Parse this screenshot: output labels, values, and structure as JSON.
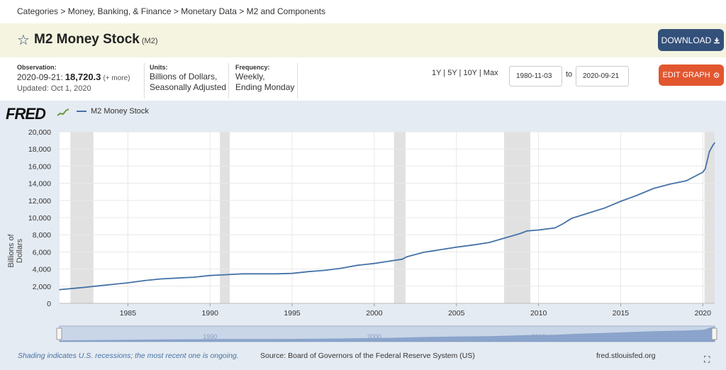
{
  "breadcrumb": "Categories > Money, Banking, & Finance > Monetary Data > M2 and Components",
  "header": {
    "title": "M2 Money Stock",
    "code": "(M2)",
    "download_label": "DOWNLOAD"
  },
  "meta": {
    "observation_label": "Observation:",
    "observation_date": "2020-09-21:",
    "observation_value": "18,720.3",
    "observation_more": "(+ more)",
    "updated": "Updated: Oct 1, 2020",
    "units_label": "Units:",
    "units_line1": "Billions of Dollars,",
    "units_line2": "Seasonally Adjusted",
    "frequency_label": "Frequency:",
    "frequency_line1": "Weekly,",
    "frequency_line2": "Ending Monday"
  },
  "controls": {
    "ranges": "1Y | 5Y | 10Y | Max",
    "start_date": "1980-11-03",
    "to_label": "to",
    "end_date": "2020-09-21",
    "edit_label": "EDIT GRAPH"
  },
  "icons": {
    "star": "star-icon",
    "download": "download-icon",
    "gear": "gear-icon",
    "fullscreen": "fullscreen-icon"
  },
  "colors": {
    "series": "#4572a7",
    "recession": "#e1e1e1",
    "download_btn": "#33507a",
    "edit_btn": "#e2562f"
  },
  "footer": {
    "recession_note": "Shading indicates U.S. recessions; the most recent one is ongoing.",
    "source": "Source: Board of Governors of the Federal Reserve System (US)",
    "site": "fred.stlouisfed.org"
  },
  "logo_text": "FRED",
  "chart_data": {
    "type": "line",
    "title": "",
    "ylabel": "Billions of Dollars",
    "xlabel": "",
    "xlim": [
      1980.84,
      2020.72
    ],
    "ylim": [
      0,
      20000
    ],
    "grid": true,
    "legend_position": "top-left",
    "xticks": [
      1985,
      1990,
      1995,
      2000,
      2005,
      2010,
      2015,
      2020
    ],
    "yticks": [
      0,
      2000,
      4000,
      6000,
      8000,
      10000,
      12000,
      14000,
      16000,
      18000,
      20000
    ],
    "ytick_labels": [
      "0",
      "2,000",
      "4,000",
      "6,000",
      "8,000",
      "10,000",
      "12,000",
      "14,000",
      "16,000",
      "18,000",
      "20,000"
    ],
    "navigator_labels": [
      "1990",
      "2000",
      "2010"
    ],
    "recessions": [
      [
        1981.5,
        1982.9
      ],
      [
        1990.6,
        1991.2
      ],
      [
        2001.2,
        2001.9
      ],
      [
        2007.9,
        2009.5
      ],
      [
        2020.1,
        2020.72
      ]
    ],
    "series": [
      {
        "name": "M2 Money Stock",
        "x": [
          1980.84,
          1982,
          1983,
          1984,
          1985,
          1986,
          1987,
          1988,
          1989,
          1990,
          1991,
          1992,
          1993,
          1994,
          1995,
          1996,
          1997,
          1998,
          1999,
          2000,
          2001,
          2001.7,
          2002,
          2003,
          2003.5,
          2004,
          2005,
          2006,
          2007,
          2008,
          2008.9,
          2009.3,
          2010,
          2011,
          2011.5,
          2011.8,
          2012,
          2013,
          2014,
          2015,
          2016,
          2017,
          2018,
          2019,
          2020.0,
          2020.15,
          2020.25,
          2020.4,
          2020.6,
          2020.72
        ],
        "values": [
          1600,
          1800,
          2000,
          2200,
          2400,
          2650,
          2850,
          2950,
          3050,
          3250,
          3350,
          3450,
          3450,
          3450,
          3500,
          3700,
          3850,
          4100,
          4450,
          4650,
          4950,
          5150,
          5450,
          5950,
          6100,
          6250,
          6550,
          6800,
          7100,
          7650,
          8150,
          8450,
          8550,
          8800,
          9300,
          9650,
          9900,
          10500,
          11100,
          11900,
          12600,
          13400,
          13900,
          14300,
          15300,
          15700,
          16500,
          17700,
          18400,
          18720
        ]
      }
    ]
  }
}
